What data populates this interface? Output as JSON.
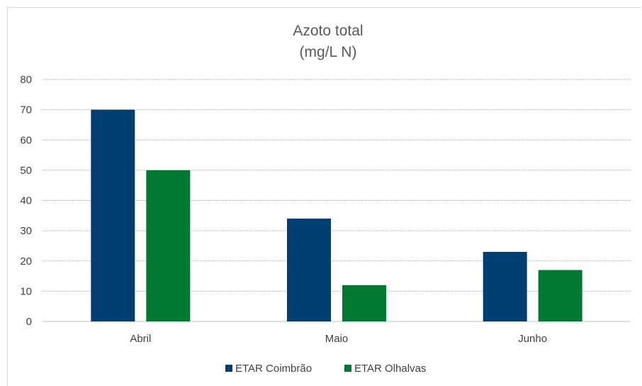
{
  "chart_data": {
    "type": "bar",
    "title": "Azoto total",
    "subtitle": "(mg/L N)",
    "categories": [
      "Abril",
      "Maio",
      "Junho"
    ],
    "series": [
      {
        "name": "ETAR Coimbrão",
        "color": "#003f72",
        "values": [
          70,
          34,
          23
        ]
      },
      {
        "name": "ETAR Olhalvas",
        "color": "#007a33",
        "values": [
          50,
          12,
          17
        ]
      }
    ],
    "yticks": [
      "0",
      "10",
      "20",
      "30",
      "40",
      "50",
      "60",
      "70",
      "80"
    ],
    "ylim": [
      0,
      80
    ],
    "grid": true,
    "legend": "bottom"
  }
}
